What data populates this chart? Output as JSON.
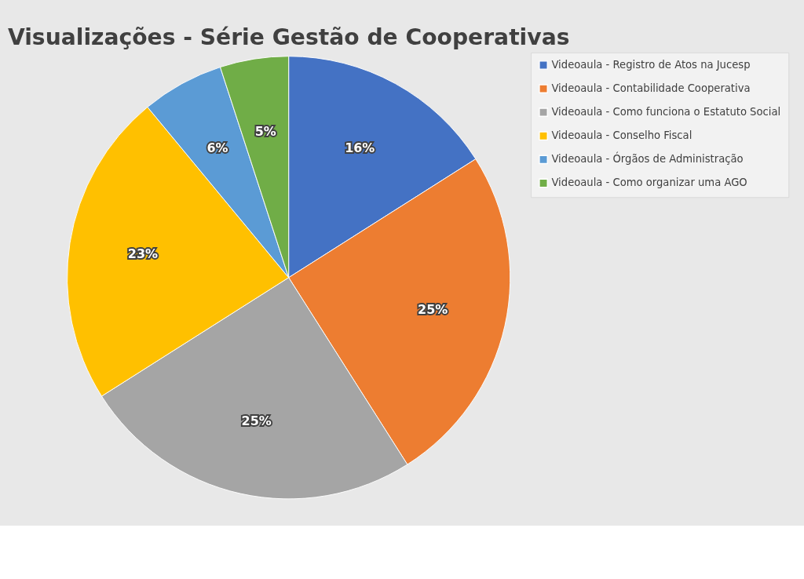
{
  "chart_data": {
    "type": "pie",
    "title": "Visualizações - Série Gestão de Cooperativas",
    "categories": [
      "Videoaula - Registro de Atos na Jucesp",
      "Videoaula - Contabilidade Cooperativa",
      "Videoaula - Como funciona o Estatuto Social",
      "Videoaula - Conselho Fiscal",
      "Videoaula - Órgãos de Administração",
      "Videoaula - Como organizar uma AGO"
    ],
    "values": [
      16,
      25,
      25,
      23,
      6,
      5
    ],
    "colors": [
      "#4472c4",
      "#ed7d31",
      "#a5a5a5",
      "#ffc000",
      "#5b9bd5",
      "#70ad47"
    ],
    "value_labels": [
      "16%",
      "25%",
      "25%",
      "23%",
      "6%",
      "5%"
    ],
    "legend": "right"
  }
}
